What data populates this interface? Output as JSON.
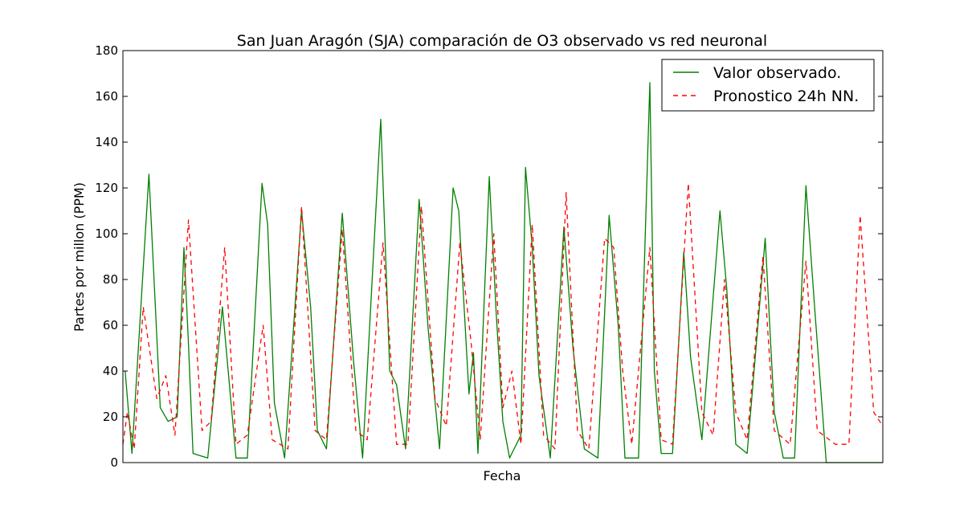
{
  "chart_data": {
    "type": "line",
    "title": "San Juan Aragón (SJA) comparación de O3 observado vs red neuronal",
    "xlabel": "Fecha",
    "ylabel": "Partes por millon (PPM)",
    "ylim": [
      0,
      180
    ],
    "yticks": [
      0,
      20,
      40,
      60,
      80,
      100,
      120,
      140,
      160,
      180
    ],
    "xlim": [
      0,
      672
    ],
    "xticks_visible": false,
    "grid": false,
    "legend_placement": "top-right",
    "series": [
      {
        "name": "Valor observado.",
        "color": "#008000",
        "style": "solid",
        "peaks": [
          {
            "x": 2,
            "v": 40
          },
          {
            "x": 8,
            "v": 4
          },
          {
            "x": 23,
            "v": 126
          },
          {
            "x": 33,
            "v": 24
          },
          {
            "x": 40,
            "v": 18
          },
          {
            "x": 48,
            "v": 20
          },
          {
            "x": 54,
            "v": 94
          },
          {
            "x": 58,
            "v": 52
          },
          {
            "x": 62,
            "v": 4
          },
          {
            "x": 75,
            "v": 2
          },
          {
            "x": 88,
            "v": 68
          },
          {
            "x": 100,
            "v": 2
          },
          {
            "x": 110,
            "v": 2
          },
          {
            "x": 123,
            "v": 122
          },
          {
            "x": 128,
            "v": 104
          },
          {
            "x": 134,
            "v": 26
          },
          {
            "x": 143,
            "v": 2
          },
          {
            "x": 158,
            "v": 110
          },
          {
            "x": 166,
            "v": 68
          },
          {
            "x": 172,
            "v": 14
          },
          {
            "x": 180,
            "v": 6
          },
          {
            "x": 194,
            "v": 109
          },
          {
            "x": 204,
            "v": 44
          },
          {
            "x": 212,
            "v": 2
          },
          {
            "x": 228,
            "v": 150
          },
          {
            "x": 236,
            "v": 40
          },
          {
            "x": 242,
            "v": 34
          },
          {
            "x": 250,
            "v": 6
          },
          {
            "x": 262,
            "v": 115
          },
          {
            "x": 270,
            "v": 58
          },
          {
            "x": 280,
            "v": 6
          },
          {
            "x": 292,
            "v": 120
          },
          {
            "x": 297,
            "v": 110
          },
          {
            "x": 306,
            "v": 30
          },
          {
            "x": 310,
            "v": 48
          },
          {
            "x": 314,
            "v": 4
          },
          {
            "x": 324,
            "v": 125
          },
          {
            "x": 330,
            "v": 66
          },
          {
            "x": 336,
            "v": 18
          },
          {
            "x": 342,
            "v": 2
          },
          {
            "x": 352,
            "v": 12
          },
          {
            "x": 356,
            "v": 129
          },
          {
            "x": 362,
            "v": 94
          },
          {
            "x": 368,
            "v": 38
          },
          {
            "x": 378,
            "v": 2
          },
          {
            "x": 390,
            "v": 103
          },
          {
            "x": 398,
            "v": 50
          },
          {
            "x": 408,
            "v": 6
          },
          {
            "x": 420,
            "v": 2
          },
          {
            "x": 430,
            "v": 108
          },
          {
            "x": 438,
            "v": 60
          },
          {
            "x": 444,
            "v": 2
          },
          {
            "x": 456,
            "v": 2
          },
          {
            "x": 466,
            "v": 166
          },
          {
            "x": 470,
            "v": 40
          },
          {
            "x": 476,
            "v": 4
          },
          {
            "x": 486,
            "v": 4
          },
          {
            "x": 496,
            "v": 92
          },
          {
            "x": 502,
            "v": 46
          },
          {
            "x": 512,
            "v": 10
          },
          {
            "x": 528,
            "v": 110
          },
          {
            "x": 534,
            "v": 76
          },
          {
            "x": 542,
            "v": 8
          },
          {
            "x": 552,
            "v": 4
          },
          {
            "x": 568,
            "v": 98
          },
          {
            "x": 576,
            "v": 22
          },
          {
            "x": 584,
            "v": 2
          },
          {
            "x": 594,
            "v": 2
          },
          {
            "x": 604,
            "v": 121
          },
          {
            "x": 612,
            "v": 66
          },
          {
            "x": 622,
            "v": 0
          },
          {
            "x": 672,
            "v": 0
          }
        ]
      },
      {
        "name": "Pronostico 24h NN.",
        "color": "#ff0000",
        "style": "dashed",
        "peaks": [
          {
            "x": 0,
            "v": 8
          },
          {
            "x": 4,
            "v": 22
          },
          {
            "x": 10,
            "v": 6
          },
          {
            "x": 18,
            "v": 68
          },
          {
            "x": 30,
            "v": 28
          },
          {
            "x": 38,
            "v": 38
          },
          {
            "x": 46,
            "v": 12
          },
          {
            "x": 58,
            "v": 106
          },
          {
            "x": 70,
            "v": 14
          },
          {
            "x": 78,
            "v": 18
          },
          {
            "x": 90,
            "v": 94
          },
          {
            "x": 100,
            "v": 8
          },
          {
            "x": 110,
            "v": 12
          },
          {
            "x": 124,
            "v": 60
          },
          {
            "x": 132,
            "v": 10
          },
          {
            "x": 146,
            "v": 6
          },
          {
            "x": 158,
            "v": 112
          },
          {
            "x": 170,
            "v": 14
          },
          {
            "x": 180,
            "v": 10
          },
          {
            "x": 194,
            "v": 102
          },
          {
            "x": 206,
            "v": 14
          },
          {
            "x": 216,
            "v": 10
          },
          {
            "x": 230,
            "v": 96
          },
          {
            "x": 242,
            "v": 8
          },
          {
            "x": 252,
            "v": 8
          },
          {
            "x": 264,
            "v": 112
          },
          {
            "x": 276,
            "v": 28
          },
          {
            "x": 286,
            "v": 16
          },
          {
            "x": 298,
            "v": 96
          },
          {
            "x": 308,
            "v": 52
          },
          {
            "x": 316,
            "v": 10
          },
          {
            "x": 328,
            "v": 100
          },
          {
            "x": 336,
            "v": 24
          },
          {
            "x": 344,
            "v": 40
          },
          {
            "x": 352,
            "v": 8
          },
          {
            "x": 362,
            "v": 104
          },
          {
            "x": 372,
            "v": 12
          },
          {
            "x": 382,
            "v": 6
          },
          {
            "x": 392,
            "v": 118
          },
          {
            "x": 402,
            "v": 14
          },
          {
            "x": 412,
            "v": 6
          },
          {
            "x": 426,
            "v": 98
          },
          {
            "x": 434,
            "v": 94
          },
          {
            "x": 442,
            "v": 40
          },
          {
            "x": 450,
            "v": 8
          },
          {
            "x": 466,
            "v": 94
          },
          {
            "x": 476,
            "v": 10
          },
          {
            "x": 486,
            "v": 8
          },
          {
            "x": 500,
            "v": 122
          },
          {
            "x": 512,
            "v": 22
          },
          {
            "x": 522,
            "v": 12
          },
          {
            "x": 532,
            "v": 80
          },
          {
            "x": 542,
            "v": 22
          },
          {
            "x": 552,
            "v": 10
          },
          {
            "x": 566,
            "v": 90
          },
          {
            "x": 576,
            "v": 14
          },
          {
            "x": 590,
            "v": 8
          },
          {
            "x": 604,
            "v": 88
          },
          {
            "x": 614,
            "v": 14
          },
          {
            "x": 630,
            "v": 8
          },
          {
            "x": 642,
            "v": 8
          },
          {
            "x": 652,
            "v": 108
          },
          {
            "x": 664,
            "v": 22
          },
          {
            "x": 672,
            "v": 16
          }
        ]
      }
    ]
  }
}
